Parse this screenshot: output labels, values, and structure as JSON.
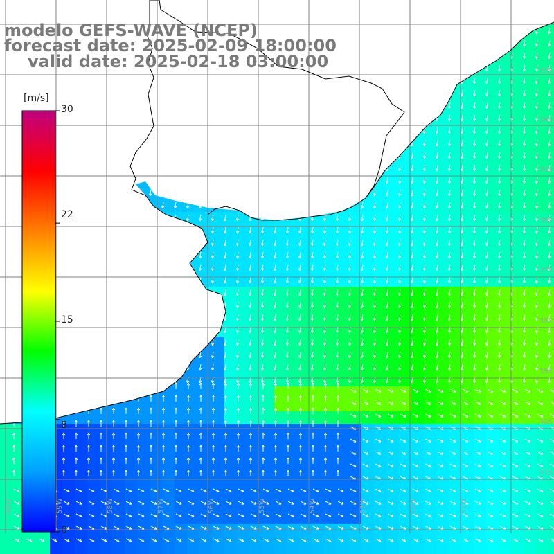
{
  "title": {
    "line1": "modelo GEFS-WAVE (NCEP)",
    "line2": "forecast date: 2025-02-09 18:00:00",
    "line3": "valid date: 2025-02-18 03:00:00"
  },
  "colorbar": {
    "unit": "[m/s]",
    "ticks": [
      "30",
      "22",
      "15",
      "8",
      "0"
    ],
    "tick_values": [
      30,
      22,
      15,
      8,
      0
    ],
    "range": [
      0,
      30
    ],
    "stops": [
      "#0000ff",
      "#00a0ff",
      "#00ffff",
      "#00ff00",
      "#ffff00",
      "#ff8000",
      "#ff0000",
      "#c00080"
    ]
  },
  "axes": {
    "lat_labels": [
      "33S",
      "34S",
      "35S",
      "36S",
      "37S",
      "38S",
      "39S",
      "40S",
      "41S"
    ],
    "lon_labels": [
      "60W",
      "59W",
      "58W",
      "57W",
      "56W",
      "55W",
      "54W",
      "53W",
      "52W",
      "51W"
    ]
  },
  "colors": {
    "land": "#ffffff",
    "coast": "#000000",
    "grid": "#808080",
    "arrow": "#ffffff",
    "title": "#7a7a7a"
  }
}
